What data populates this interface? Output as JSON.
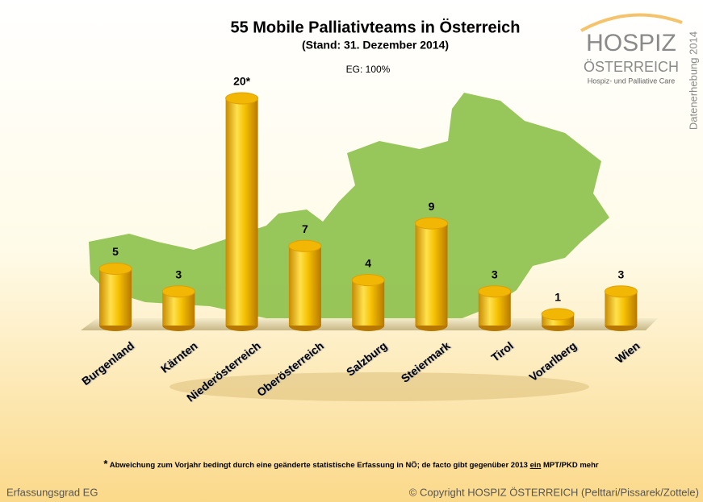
{
  "chart_data": {
    "type": "bar",
    "title": "55 Mobile Palliativteams in Österreich",
    "subtitle": "(Stand: 31. Dezember 2014)",
    "annotation": "EG: 100%",
    "categories": [
      "Burgenland",
      "Kärnten",
      "Niederösterreich",
      "Oberösterreich",
      "Salzburg",
      "Steiermark",
      "Tirol",
      "Vorarlberg",
      "Wien"
    ],
    "values": [
      5,
      3,
      20,
      7,
      4,
      9,
      3,
      1,
      3
    ],
    "value_labels": [
      "5",
      "3",
      "20*",
      "7",
      "4",
      "9",
      "3",
      "1",
      "3"
    ],
    "color": "#f2b705"
  },
  "logo": {
    "name": "HOSPIZ",
    "country": "ÖSTERREICH",
    "tagline": "Hospiz- und Palliative Care"
  },
  "side_label": "Datenerhebung 2014",
  "footnote": {
    "marker": "*",
    "before": "Abweichung zum Vorjahr bedingt durch eine geänderte statistische Erfassung in NÖ; de facto gibt gegenüber 2013",
    "emphasis": "ein",
    "after": "MPT/PKD mehr"
  },
  "footer": {
    "left": "Erfassungsgrad EG",
    "right": "© Copyright HOSPIZ ÖSTERREICH (Pelttari/Pissarek/Zottele)"
  }
}
